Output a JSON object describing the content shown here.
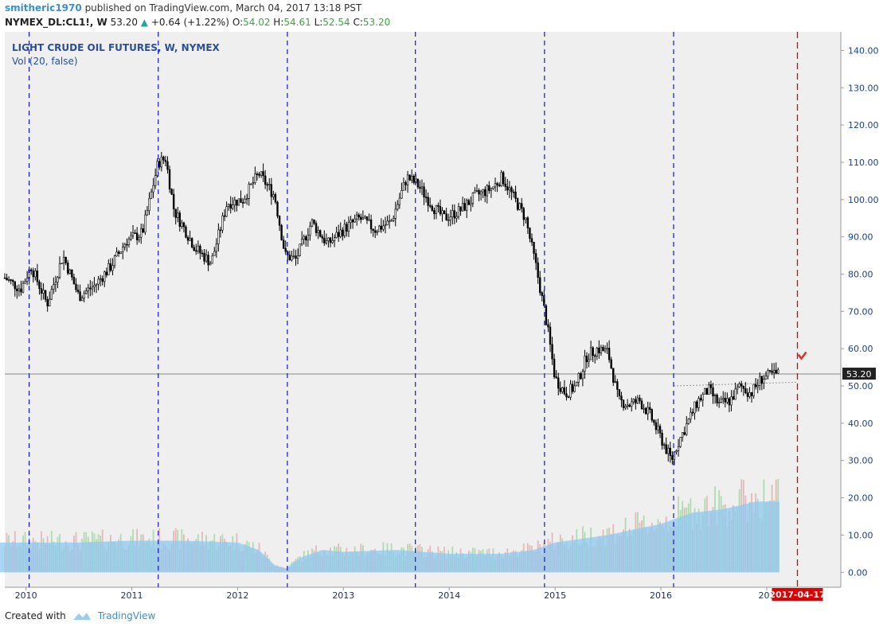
{
  "header": {
    "user": "smitheric1970",
    "published_text": "published on TradingView.com, March 04, 2017 13:18 PST",
    "symbol": "NYMEX_DL:CL1!, W",
    "last": "53.20",
    "change": "+0.64 (+1.22%)",
    "o_label": "O:",
    "o_value": "54.02",
    "h_label": "H:",
    "h_value": "54.61",
    "l_label": "L:",
    "l_value": "52.54",
    "c_label": "C:",
    "c_value": "53.20"
  },
  "footer": {
    "created_with": "Created with",
    "brand": "TradingView"
  },
  "colors": {
    "plot_bg": "#efefef",
    "candle": "#000000",
    "vol_up": "#a8d8a8",
    "vol_down": "#e3b2b2",
    "vol_ma": "#8fc8ef",
    "cycle_line": "#1515d6",
    "target_line": "#e00000",
    "axis_text": "#1c3f8a"
  },
  "chart_data": {
    "type": "candlestick",
    "title": "LIGHT CRUDE OIL FUTURES, W, NYMEX",
    "indicator_label": "Vol (20, false)",
    "x_labels": [
      "2010",
      "2011",
      "2012",
      "2013",
      "2014",
      "2015",
      "2016",
      "201"
    ],
    "y_ticks": [
      "140.00",
      "130.00",
      "120.00",
      "110.00",
      "100.00",
      "90.00",
      "80.00",
      "70.00",
      "60.00",
      "50.00",
      "40.00",
      "30.00",
      "20.00",
      "10.00",
      "0.00"
    ],
    "ylim": [
      -4,
      145
    ],
    "last_price": "53.20",
    "last_price_value": 53.2,
    "target_date_label": "2017-04-17",
    "price_path": [
      [
        2009.8,
        79
      ],
      [
        2009.95,
        76
      ],
      [
        2010.05,
        82
      ],
      [
        2010.2,
        72
      ],
      [
        2010.35,
        85
      ],
      [
        2010.5,
        74
      ],
      [
        2010.65,
        77
      ],
      [
        2010.8,
        82
      ],
      [
        2010.95,
        89
      ],
      [
        2011.1,
        91
      ],
      [
        2011.25,
        110
      ],
      [
        2011.32,
        111
      ],
      [
        2011.4,
        97
      ],
      [
        2011.6,
        87
      ],
      [
        2011.75,
        83
      ],
      [
        2011.9,
        99
      ],
      [
        2012.05,
        100
      ],
      [
        2012.2,
        107
      ],
      [
        2012.35,
        101
      ],
      [
        2012.45,
        85
      ],
      [
        2012.55,
        84
      ],
      [
        2012.7,
        94
      ],
      [
        2012.85,
        88
      ],
      [
        2013.0,
        92
      ],
      [
        2013.15,
        95
      ],
      [
        2013.3,
        92
      ],
      [
        2013.45,
        94
      ],
      [
        2013.6,
        106
      ],
      [
        2013.7,
        104
      ],
      [
        2013.85,
        98
      ],
      [
        2013.95,
        95
      ],
      [
        2014.1,
        97
      ],
      [
        2014.25,
        101
      ],
      [
        2014.4,
        103
      ],
      [
        2014.5,
        106
      ],
      [
        2014.62,
        100
      ],
      [
        2014.72,
        95
      ],
      [
        2014.82,
        82
      ],
      [
        2014.92,
        67
      ],
      [
        2015.0,
        52
      ],
      [
        2015.1,
        48
      ],
      [
        2015.2,
        50
      ],
      [
        2015.3,
        58
      ],
      [
        2015.4,
        60
      ],
      [
        2015.5,
        59
      ],
      [
        2015.6,
        46
      ],
      [
        2015.7,
        45
      ],
      [
        2015.8,
        46
      ],
      [
        2015.9,
        42
      ],
      [
        2016.0,
        36
      ],
      [
        2016.05,
        33
      ],
      [
        2016.1,
        30
      ],
      [
        2016.15,
        34
      ],
      [
        2016.25,
        40
      ],
      [
        2016.35,
        46
      ],
      [
        2016.45,
        49
      ],
      [
        2016.55,
        45
      ],
      [
        2016.65,
        46
      ],
      [
        2016.75,
        50
      ],
      [
        2016.85,
        48
      ],
      [
        2016.95,
        52
      ],
      [
        2017.05,
        53
      ],
      [
        2017.12,
        53.2
      ]
    ],
    "volume_ma_path": [
      [
        2009.75,
        8
      ],
      [
        2010.5,
        8
      ],
      [
        2011.0,
        8.5
      ],
      [
        2011.5,
        8.5
      ],
      [
        2012.0,
        8
      ],
      [
        2012.2,
        6
      ],
      [
        2012.35,
        2
      ],
      [
        2012.45,
        1
      ],
      [
        2012.6,
        4
      ],
      [
        2012.8,
        6
      ],
      [
        2013.0,
        5.5
      ],
      [
        2013.5,
        6
      ],
      [
        2014.0,
        5
      ],
      [
        2014.5,
        5
      ],
      [
        2014.8,
        6
      ],
      [
        2015.0,
        8
      ],
      [
        2015.5,
        10
      ],
      [
        2016.0,
        13
      ],
      [
        2016.3,
        16
      ],
      [
        2016.6,
        17
      ],
      [
        2016.9,
        19
      ],
      [
        2017.12,
        19
      ]
    ],
    "cycle_lines": [
      2010.03,
      2011.25,
      2012.47,
      2013.68,
      2014.9,
      2016.12
    ],
    "target_line": 2017.29,
    "trendline": [
      [
        2016.12,
        50
      ],
      [
        2017.29,
        51
      ]
    ]
  }
}
